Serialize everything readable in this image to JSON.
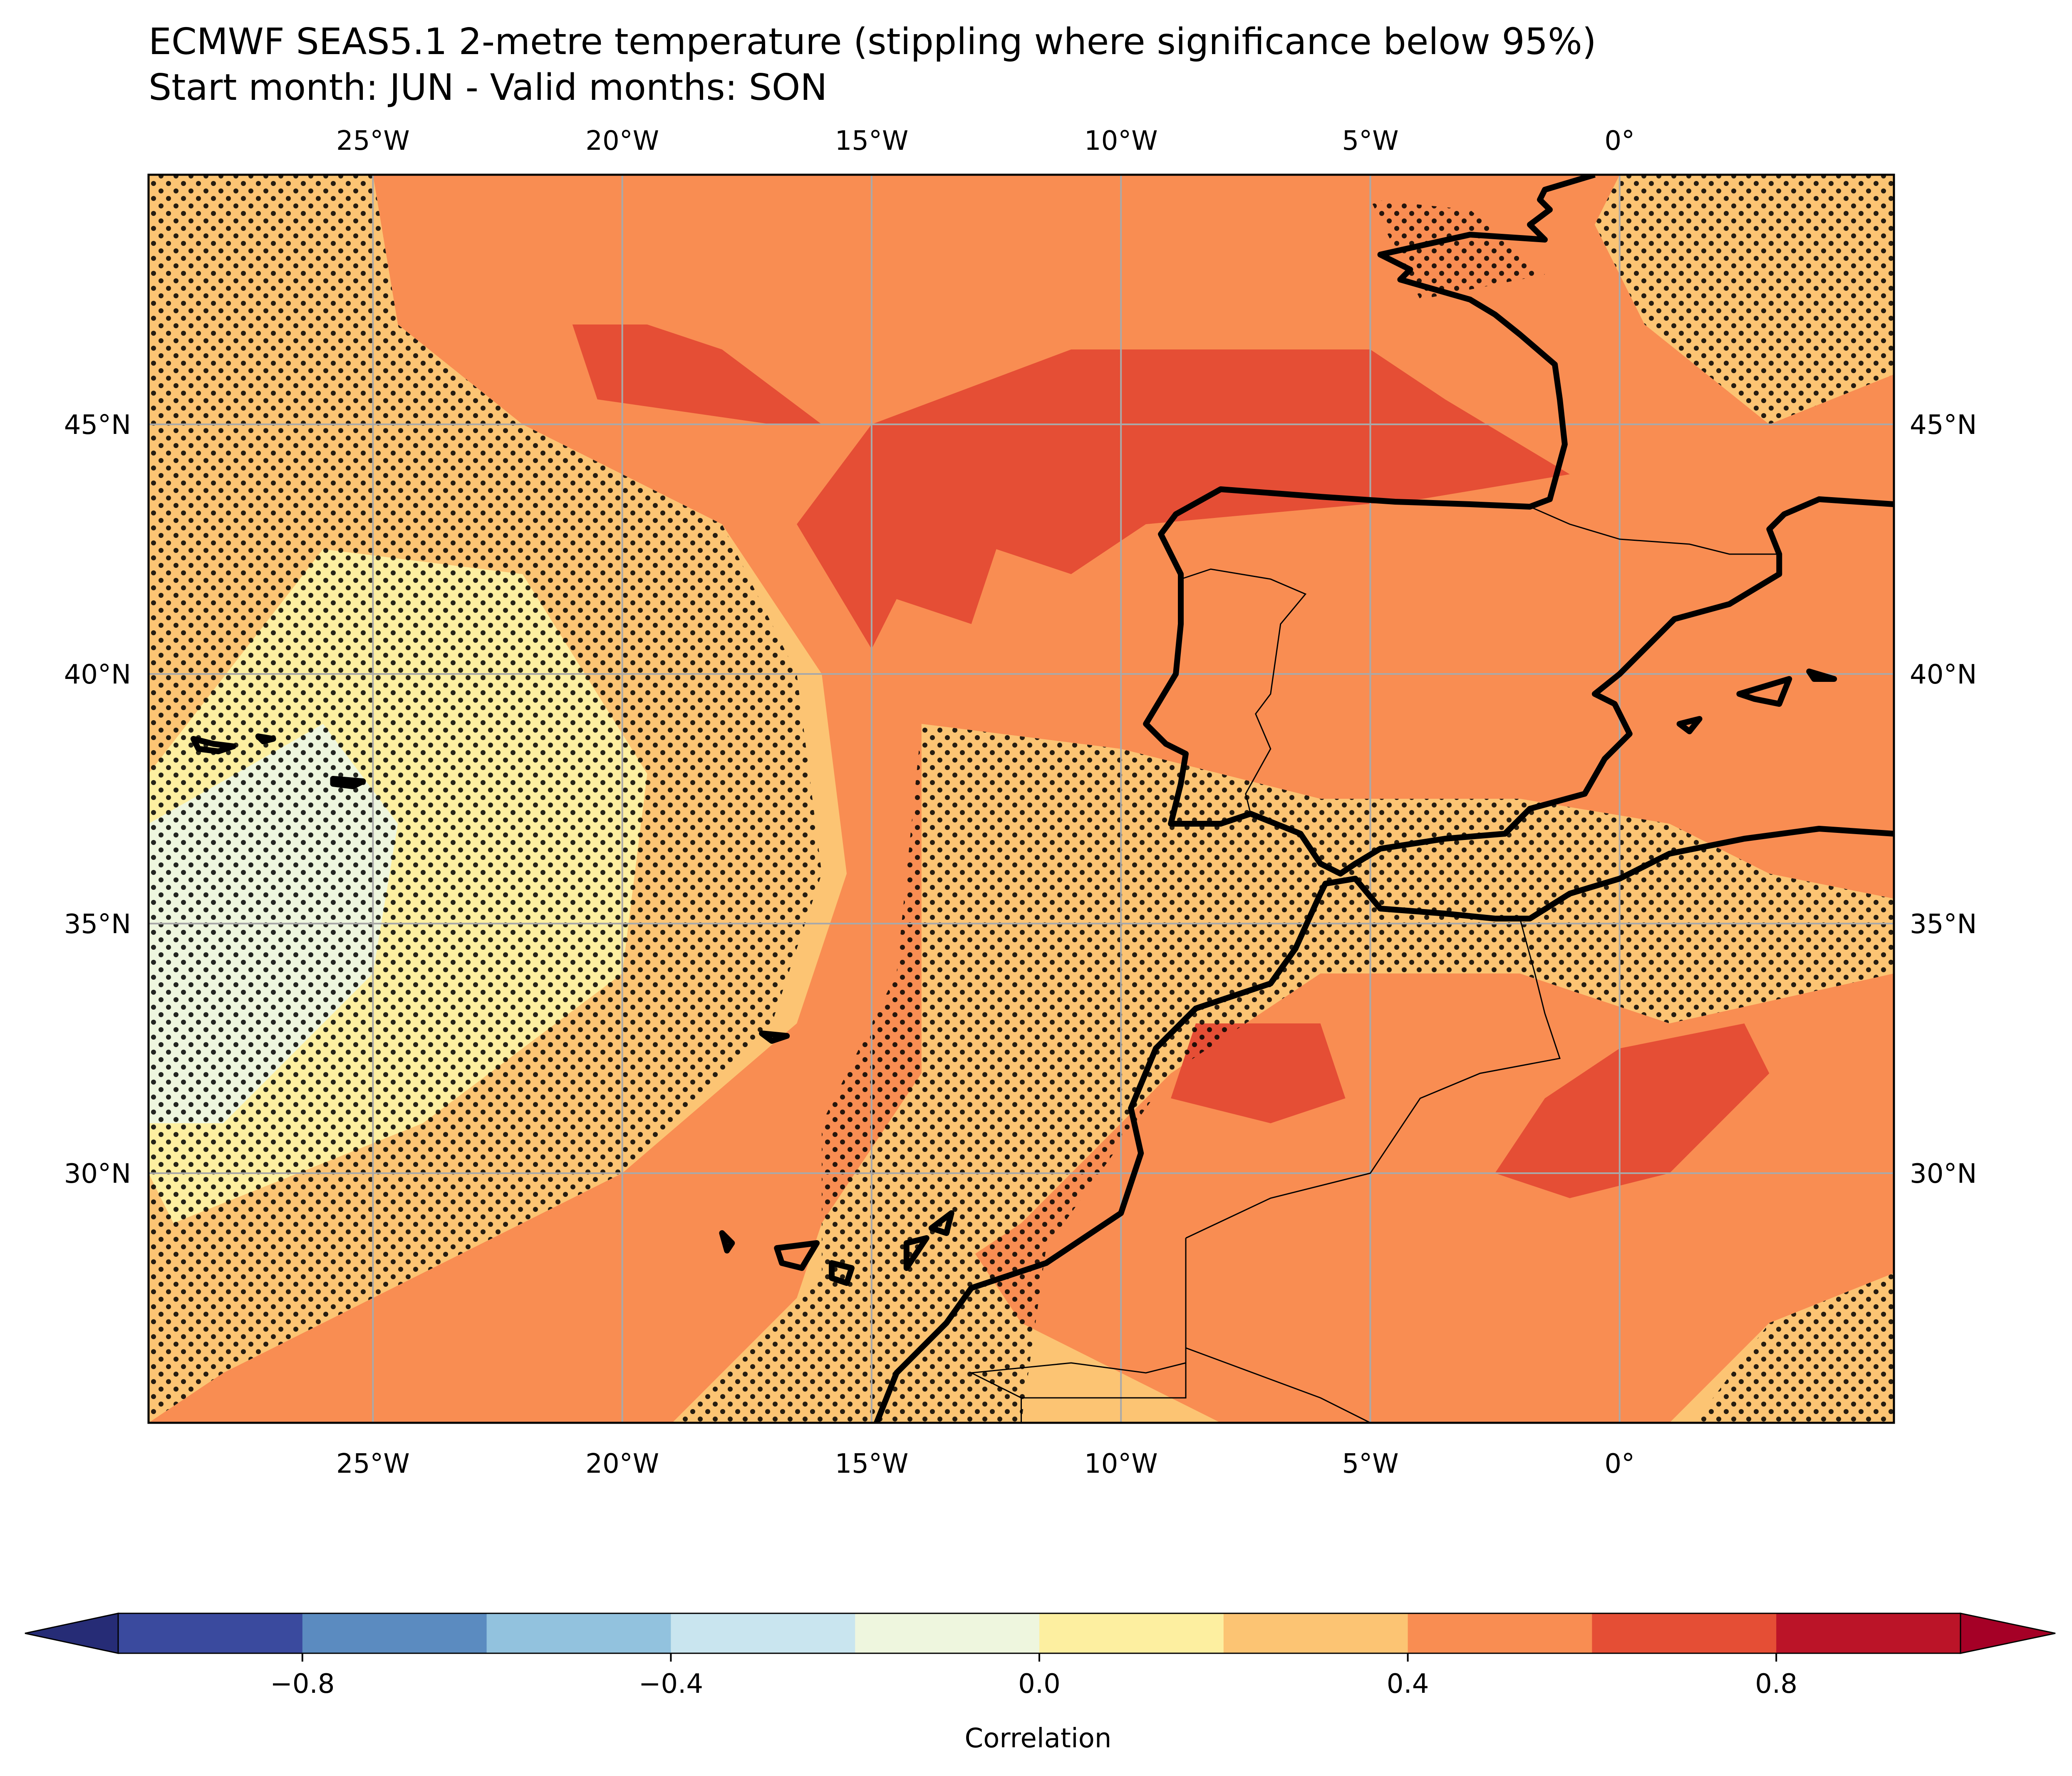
{
  "title_line1": "ECMWF SEAS5.1 2-metre temperature (stippling where significance below 95%)",
  "title_line2": "Start month: JUN - Valid months: SON",
  "map": {
    "lon_range": [
      -29.5,
      5.5
    ],
    "lat_range": [
      25.0,
      50.0
    ],
    "gridlines": true,
    "lon_ticks": [
      {
        "value": -25,
        "label": "25°W"
      },
      {
        "value": -20,
        "label": "20°W"
      },
      {
        "value": -15,
        "label": "15°W"
      },
      {
        "value": -10,
        "label": "10°W"
      },
      {
        "value": -5,
        "label": "5°W"
      },
      {
        "value": 0,
        "label": "0°"
      }
    ],
    "lat_ticks": [
      {
        "value": 45,
        "label": "45°N"
      },
      {
        "value": 40,
        "label": "40°N"
      },
      {
        "value": 35,
        "label": "35°N"
      },
      {
        "value": 30,
        "label": "30°N"
      }
    ]
  },
  "colorbar": {
    "label": "Correlation",
    "extend": "both",
    "bounds": [
      -1.0,
      -0.8,
      -0.6,
      -0.4,
      -0.2,
      0.0,
      0.2,
      0.4,
      0.6,
      0.8,
      1.0
    ],
    "colors": [
      "#3a4a9e",
      "#5b8bc0",
      "#92c2de",
      "#c9e5ef",
      "#eef6de",
      "#fdefa0",
      "#fcc473",
      "#f98d52",
      "#e54e35",
      "#bb1428"
    ],
    "extend_min_color": "#262c76",
    "extend_max_color": "#a50026",
    "ticks": [
      {
        "value": -0.8,
        "label": "−0.8"
      },
      {
        "value": -0.4,
        "label": "−0.4"
      },
      {
        "value": 0.0,
        "label": "0.0"
      },
      {
        "value": 0.4,
        "label": "0.4"
      },
      {
        "value": 0.8,
        "label": "0.8"
      }
    ]
  },
  "chart_data": {
    "type": "heatmap",
    "variable": "2-metre temperature",
    "fields": [
      {
        "class_range": [
          0.4,
          0.6
        ],
        "role": "background"
      },
      {
        "class_range": [
          0.2,
          0.4
        ],
        "region": "western ocean",
        "polygon": [
          [
            -29.5,
            50
          ],
          [
            -25,
            50
          ],
          [
            -24.5,
            47
          ],
          [
            -22,
            45
          ],
          [
            -18,
            43
          ],
          [
            -16,
            40
          ],
          [
            -15.5,
            36
          ],
          [
            -16.5,
            33
          ],
          [
            -20,
            30
          ],
          [
            -24,
            28
          ],
          [
            -28,
            26
          ],
          [
            -29.5,
            25
          ]
        ]
      },
      {
        "class_range": [
          0.0,
          0.2
        ],
        "region": "Azores area",
        "polygon": [
          [
            -29.5,
            38
          ],
          [
            -26,
            42.5
          ],
          [
            -22,
            42
          ],
          [
            -19.5,
            38
          ],
          [
            -20,
            34
          ],
          [
            -24,
            31
          ],
          [
            -29,
            29
          ],
          [
            -29.5,
            30
          ]
        ]
      },
      {
        "class_range": [
          -0.2,
          0.0
        ],
        "region": "near Azores",
        "polygon": [
          [
            -29.5,
            37
          ],
          [
            -26,
            39
          ],
          [
            -24.5,
            37
          ],
          [
            -25,
            34
          ],
          [
            -28,
            31
          ],
          [
            -29.5,
            31
          ]
        ]
      },
      {
        "class_range": [
          0.2,
          0.4
        ],
        "region": "northeast",
        "polygon": [
          [
            0,
            50
          ],
          [
            5.5,
            50
          ],
          [
            5.5,
            46
          ],
          [
            3,
            45
          ],
          [
            0.5,
            47
          ],
          [
            -0.5,
            49
          ]
        ]
      },
      {
        "class_range": [
          0.2,
          0.4
        ],
        "region": "north Africa coast",
        "polygon": [
          [
            -14,
            39
          ],
          [
            -10,
            38.5
          ],
          [
            -6,
            37.5
          ],
          [
            -2,
            37.5
          ],
          [
            1,
            37
          ],
          [
            3,
            36
          ],
          [
            5.5,
            35.5
          ],
          [
            5.5,
            34
          ],
          [
            1,
            33
          ],
          [
            -2,
            34
          ],
          [
            -6,
            34
          ],
          [
            -9,
            32
          ],
          [
            -12,
            29
          ],
          [
            -15,
            27
          ],
          [
            -17,
            26
          ],
          [
            -16,
            29
          ],
          [
            -14,
            32
          ]
        ]
      },
      {
        "class_range": [
          0.2,
          0.4
        ],
        "region": "south",
        "polygon": [
          [
            -19,
            25
          ],
          [
            -16,
            28
          ],
          [
            -14,
            30
          ],
          [
            -12,
            27
          ],
          [
            -8,
            25
          ]
        ]
      },
      {
        "class_range": [
          0.2,
          0.4
        ],
        "region": "southeast",
        "polygon": [
          [
            1,
            25
          ],
          [
            3,
            27
          ],
          [
            5.5,
            28
          ],
          [
            5.5,
            25
          ]
        ]
      },
      {
        "class_range": [
          0.6,
          0.8
        ],
        "region": "Bay of Biscay",
        "polygon": [
          [
            -16.5,
            43
          ],
          [
            -15,
            45
          ],
          [
            -11,
            46.5
          ],
          [
            -5,
            46.5
          ],
          [
            -3.5,
            45.5
          ],
          [
            -1,
            44
          ],
          [
            -4,
            43.5
          ],
          [
            -9.5,
            43
          ],
          [
            -11,
            42
          ],
          [
            -12.5,
            42.5
          ],
          [
            -13,
            41
          ],
          [
            -14.5,
            41.5
          ],
          [
            -15,
            40.5
          ]
        ]
      },
      {
        "class_range": [
          0.6,
          0.8
        ],
        "region": "north Atlantic",
        "polygon": [
          [
            -21,
            47
          ],
          [
            -20.5,
            45.5
          ],
          [
            -17,
            45
          ],
          [
            -16,
            45
          ],
          [
            -18,
            46.5
          ],
          [
            -19.5,
            47
          ]
        ]
      },
      {
        "class_range": [
          0.6,
          0.8
        ],
        "region": "Morocco",
        "polygon": [
          [
            -8.5,
            33
          ],
          [
            -6,
            33
          ],
          [
            -5.5,
            31.5
          ],
          [
            -7,
            31
          ],
          [
            -9,
            31.5
          ]
        ]
      },
      {
        "class_range": [
          0.6,
          0.8
        ],
        "region": "Algeria",
        "polygon": [
          [
            -1.5,
            31.5
          ],
          [
            0,
            32.5
          ],
          [
            2.5,
            33
          ],
          [
            3,
            32
          ],
          [
            1,
            30
          ],
          [
            -1,
            29.5
          ],
          [
            -2.5,
            30
          ]
        ]
      }
    ],
    "stippling": "where significance below 95%"
  }
}
